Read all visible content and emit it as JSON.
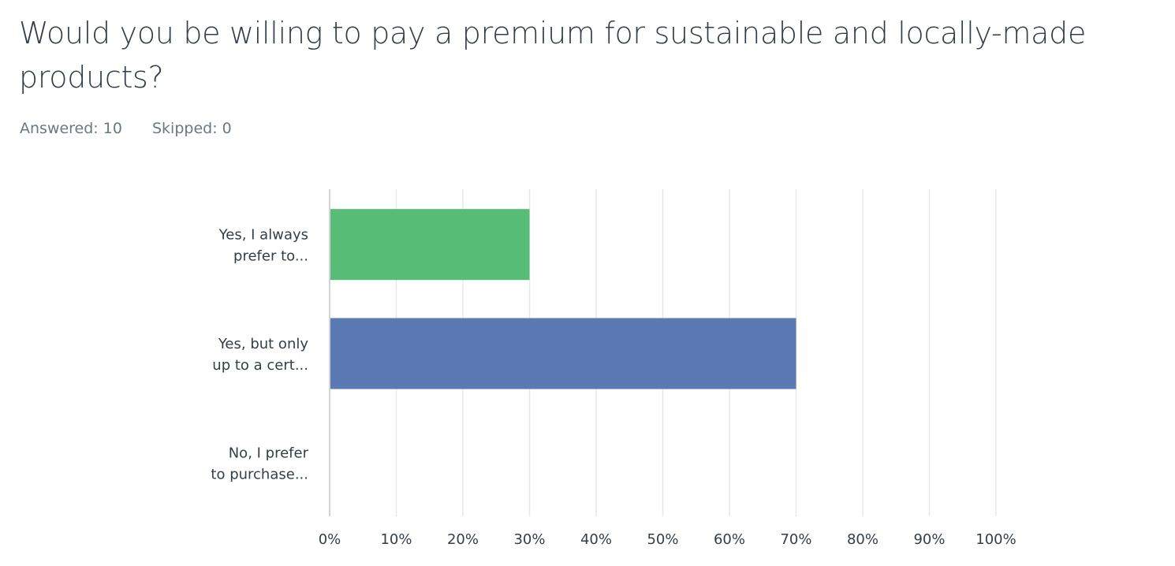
{
  "question": {
    "title": "Would you be willing to pay a premium for sustainable and locally-made products?",
    "answered": "Answered: 10",
    "skipped": "Skipped: 0"
  },
  "chart_data": {
    "type": "bar",
    "orientation": "horizontal",
    "categories": [
      [
        "Yes, I always",
        "prefer to..."
      ],
      [
        "Yes, but only",
        "up to a cert..."
      ],
      [
        "No, I prefer",
        "to purchase..."
      ]
    ],
    "values": [
      30,
      70,
      0
    ],
    "colors": [
      "#57bd76",
      "#5b79b2",
      "#d5812f"
    ],
    "xlim": [
      0,
      100
    ],
    "xticks": [
      "0%",
      "10%",
      "20%",
      "30%",
      "40%",
      "50%",
      "60%",
      "70%",
      "80%",
      "90%",
      "100%"
    ],
    "grid": true,
    "legend": "none"
  }
}
